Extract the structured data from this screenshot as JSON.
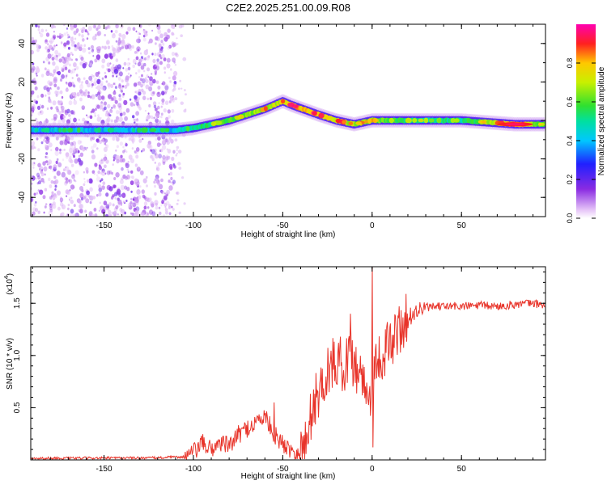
{
  "title": "C2E2.2025.251.00.09.R08",
  "colorbar": {
    "label": "Normalized spectral amplitude",
    "ticks": [
      "0.0",
      "0.2",
      "0.4",
      "0.6",
      "0.8"
    ],
    "tick_values": [
      0,
      0.2,
      0.4,
      0.6,
      0.8
    ],
    "range": [
      0,
      1
    ]
  },
  "chart_data": [
    {
      "type": "heatmap",
      "name": "spectrogram",
      "xlabel": "Height of straight line (km)",
      "ylabel": "Frequency (Hz)",
      "xlim": [
        -191,
        97
      ],
      "ylim": [
        -50,
        50
      ],
      "xticks": [
        -150,
        -100,
        -50,
        0,
        50
      ],
      "xtick_labels": [
        "-150",
        "-100",
        "-50",
        "0",
        "50"
      ],
      "yticks": [
        40,
        20,
        0,
        -20,
        -40
      ],
      "ytick_labels": [
        "40",
        "20",
        "0",
        "-20",
        "-40"
      ],
      "ridge": {
        "x": [
          -191,
          -110,
          -100,
          -80,
          -60,
          -50,
          -45,
          -30,
          -20,
          -10,
          0,
          20,
          50,
          80,
          97
        ],
        "frequency": [
          -5,
          -5,
          -4,
          0,
          6,
          10,
          8,
          3,
          0,
          -2,
          0,
          0,
          0,
          -2,
          -2
        ],
        "amplitude": [
          0.45,
          0.45,
          0.55,
          0.65,
          0.75,
          0.8,
          0.9,
          0.85,
          0.8,
          0.75,
          0.7,
          0.6,
          0.55,
          0.9,
          0.6
        ]
      },
      "noise_region_x": [
        -191,
        -110
      ],
      "colormap": [
        "white",
        "purple",
        "blue",
        "cyan",
        "green",
        "yellow",
        "orange",
        "red",
        "magenta"
      ]
    },
    {
      "type": "line",
      "name": "snr",
      "xlabel": "Height of straight line (km)",
      "ylabel": "SNR (10 * v/v)",
      "ylabel_scale": "(x10",
      "ylabel_exponent": "4",
      "xlim": [
        -191,
        97
      ],
      "ylim": [
        0,
        18500
      ],
      "xticks": [
        -150,
        -100,
        -50,
        0,
        50
      ],
      "xtick_labels": [
        "-150",
        "-100",
        "-50",
        "0",
        "50"
      ],
      "yticks": [
        5000,
        10000,
        15000
      ],
      "ytick_labels": [
        "0.5",
        "1.0",
        "1.5"
      ],
      "color": "#e8342a",
      "x": [
        -191,
        -120,
        -105,
        -100,
        -95,
        -90,
        -85,
        -80,
        -75,
        -70,
        -65,
        -60,
        -55,
        -50,
        -45,
        -40,
        -37,
        -35,
        -30,
        -25,
        -20,
        -15,
        -12,
        -10,
        -5,
        -2,
        0,
        1,
        5,
        10,
        15,
        20,
        25,
        30,
        40,
        50,
        60,
        70,
        80,
        90,
        97
      ],
      "y": [
        150,
        200,
        300,
        700,
        1600,
        1000,
        1700,
        1300,
        2400,
        3000,
        3600,
        4200,
        2500,
        1500,
        1000,
        700,
        1500,
        4000,
        6500,
        8500,
        9500,
        9000,
        10500,
        9000,
        8000,
        5500,
        7500,
        9000,
        10000,
        11000,
        12500,
        13500,
        14300,
        14600,
        14700,
        14700,
        14800,
        14700,
        14900,
        15000,
        14800
      ],
      "spikes": [
        {
          "x": -12,
          "y": 14000
        },
        {
          "x": 0,
          "y": 18500
        },
        {
          "x": 0.5,
          "y": 1200
        },
        {
          "x": -55,
          "y": 5500
        }
      ]
    }
  ]
}
